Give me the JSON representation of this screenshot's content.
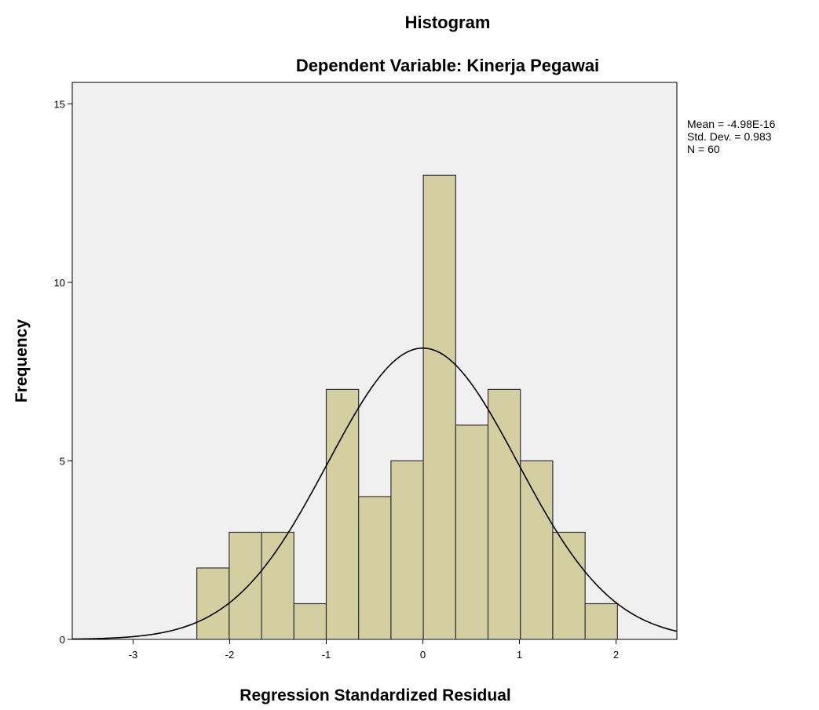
{
  "chart_data": {
    "type": "histogram",
    "title": "Histogram",
    "subtitle": "Dependent Variable: Kinerja Pegawai",
    "x_label": "Regression Standardized Residual",
    "y_label": "Frequency",
    "bins": [
      -2.34,
      -2.005,
      -1.67,
      -1.335,
      -1.0,
      -0.665,
      -0.33,
      0.005,
      0.34,
      0.675,
      1.01,
      1.345,
      1.68,
      2.015
    ],
    "values": [
      2,
      3,
      3,
      1,
      7,
      4,
      5,
      13,
      6,
      7,
      5,
      3,
      1
    ],
    "color": "#d4cfa0",
    "xlim": [
      -3.63,
      2.63
    ],
    "ylim": [
      0,
      15.6
    ],
    "xticks": [
      -3,
      -2,
      -1,
      0,
      1,
      2
    ],
    "yticks": [
      0,
      5,
      10,
      15
    ],
    "stats": {
      "mean": {
        "value": -4.98e-16,
        "label": "Mean = -4.98E-16"
      },
      "std_dev": {
        "value": 0.983,
        "label": "Std. Dev. = 0.983"
      },
      "n": {
        "value": 60,
        "label": "N = 60"
      }
    }
  }
}
